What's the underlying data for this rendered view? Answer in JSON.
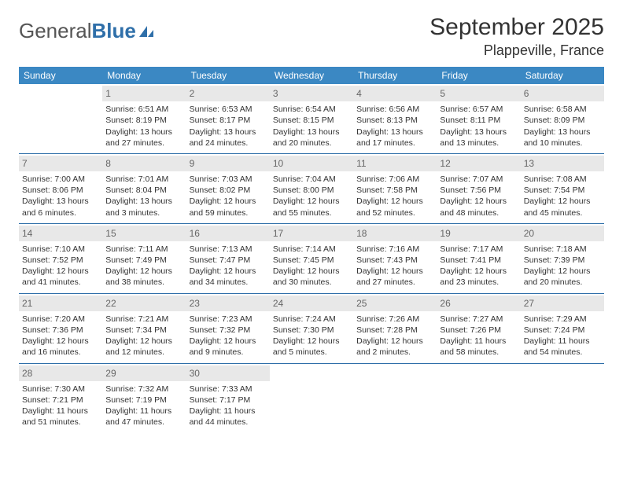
{
  "logo": {
    "text1": "General",
    "text2": "Blue"
  },
  "header": {
    "month_title": "September 2025",
    "location": "Plappeville, France"
  },
  "colors": {
    "header_bg": "#3b88c3",
    "header_fg": "#ffffff",
    "daynum_bg": "#e8e8e8",
    "daynum_fg": "#666666",
    "rule": "#2f6fa9",
    "logo_gray": "#555555",
    "logo_blue": "#2f6fa9"
  },
  "day_labels": [
    "Sunday",
    "Monday",
    "Tuesday",
    "Wednesday",
    "Thursday",
    "Friday",
    "Saturday"
  ],
  "weeks": [
    [
      null,
      {
        "n": "1",
        "sr": "Sunrise: 6:51 AM",
        "ss": "Sunset: 8:19 PM",
        "dl": "Daylight: 13 hours and 27 minutes."
      },
      {
        "n": "2",
        "sr": "Sunrise: 6:53 AM",
        "ss": "Sunset: 8:17 PM",
        "dl": "Daylight: 13 hours and 24 minutes."
      },
      {
        "n": "3",
        "sr": "Sunrise: 6:54 AM",
        "ss": "Sunset: 8:15 PM",
        "dl": "Daylight: 13 hours and 20 minutes."
      },
      {
        "n": "4",
        "sr": "Sunrise: 6:56 AM",
        "ss": "Sunset: 8:13 PM",
        "dl": "Daylight: 13 hours and 17 minutes."
      },
      {
        "n": "5",
        "sr": "Sunrise: 6:57 AM",
        "ss": "Sunset: 8:11 PM",
        "dl": "Daylight: 13 hours and 13 minutes."
      },
      {
        "n": "6",
        "sr": "Sunrise: 6:58 AM",
        "ss": "Sunset: 8:09 PM",
        "dl": "Daylight: 13 hours and 10 minutes."
      }
    ],
    [
      {
        "n": "7",
        "sr": "Sunrise: 7:00 AM",
        "ss": "Sunset: 8:06 PM",
        "dl": "Daylight: 13 hours and 6 minutes."
      },
      {
        "n": "8",
        "sr": "Sunrise: 7:01 AM",
        "ss": "Sunset: 8:04 PM",
        "dl": "Daylight: 13 hours and 3 minutes."
      },
      {
        "n": "9",
        "sr": "Sunrise: 7:03 AM",
        "ss": "Sunset: 8:02 PM",
        "dl": "Daylight: 12 hours and 59 minutes."
      },
      {
        "n": "10",
        "sr": "Sunrise: 7:04 AM",
        "ss": "Sunset: 8:00 PM",
        "dl": "Daylight: 12 hours and 55 minutes."
      },
      {
        "n": "11",
        "sr": "Sunrise: 7:06 AM",
        "ss": "Sunset: 7:58 PM",
        "dl": "Daylight: 12 hours and 52 minutes."
      },
      {
        "n": "12",
        "sr": "Sunrise: 7:07 AM",
        "ss": "Sunset: 7:56 PM",
        "dl": "Daylight: 12 hours and 48 minutes."
      },
      {
        "n": "13",
        "sr": "Sunrise: 7:08 AM",
        "ss": "Sunset: 7:54 PM",
        "dl": "Daylight: 12 hours and 45 minutes."
      }
    ],
    [
      {
        "n": "14",
        "sr": "Sunrise: 7:10 AM",
        "ss": "Sunset: 7:52 PM",
        "dl": "Daylight: 12 hours and 41 minutes."
      },
      {
        "n": "15",
        "sr": "Sunrise: 7:11 AM",
        "ss": "Sunset: 7:49 PM",
        "dl": "Daylight: 12 hours and 38 minutes."
      },
      {
        "n": "16",
        "sr": "Sunrise: 7:13 AM",
        "ss": "Sunset: 7:47 PM",
        "dl": "Daylight: 12 hours and 34 minutes."
      },
      {
        "n": "17",
        "sr": "Sunrise: 7:14 AM",
        "ss": "Sunset: 7:45 PM",
        "dl": "Daylight: 12 hours and 30 minutes."
      },
      {
        "n": "18",
        "sr": "Sunrise: 7:16 AM",
        "ss": "Sunset: 7:43 PM",
        "dl": "Daylight: 12 hours and 27 minutes."
      },
      {
        "n": "19",
        "sr": "Sunrise: 7:17 AM",
        "ss": "Sunset: 7:41 PM",
        "dl": "Daylight: 12 hours and 23 minutes."
      },
      {
        "n": "20",
        "sr": "Sunrise: 7:18 AM",
        "ss": "Sunset: 7:39 PM",
        "dl": "Daylight: 12 hours and 20 minutes."
      }
    ],
    [
      {
        "n": "21",
        "sr": "Sunrise: 7:20 AM",
        "ss": "Sunset: 7:36 PM",
        "dl": "Daylight: 12 hours and 16 minutes."
      },
      {
        "n": "22",
        "sr": "Sunrise: 7:21 AM",
        "ss": "Sunset: 7:34 PM",
        "dl": "Daylight: 12 hours and 12 minutes."
      },
      {
        "n": "23",
        "sr": "Sunrise: 7:23 AM",
        "ss": "Sunset: 7:32 PM",
        "dl": "Daylight: 12 hours and 9 minutes."
      },
      {
        "n": "24",
        "sr": "Sunrise: 7:24 AM",
        "ss": "Sunset: 7:30 PM",
        "dl": "Daylight: 12 hours and 5 minutes."
      },
      {
        "n": "25",
        "sr": "Sunrise: 7:26 AM",
        "ss": "Sunset: 7:28 PM",
        "dl": "Daylight: 12 hours and 2 minutes."
      },
      {
        "n": "26",
        "sr": "Sunrise: 7:27 AM",
        "ss": "Sunset: 7:26 PM",
        "dl": "Daylight: 11 hours and 58 minutes."
      },
      {
        "n": "27",
        "sr": "Sunrise: 7:29 AM",
        "ss": "Sunset: 7:24 PM",
        "dl": "Daylight: 11 hours and 54 minutes."
      }
    ],
    [
      {
        "n": "28",
        "sr": "Sunrise: 7:30 AM",
        "ss": "Sunset: 7:21 PM",
        "dl": "Daylight: 11 hours and 51 minutes."
      },
      {
        "n": "29",
        "sr": "Sunrise: 7:32 AM",
        "ss": "Sunset: 7:19 PM",
        "dl": "Daylight: 11 hours and 47 minutes."
      },
      {
        "n": "30",
        "sr": "Sunrise: 7:33 AM",
        "ss": "Sunset: 7:17 PM",
        "dl": "Daylight: 11 hours and 44 minutes."
      },
      null,
      null,
      null,
      null
    ]
  ]
}
